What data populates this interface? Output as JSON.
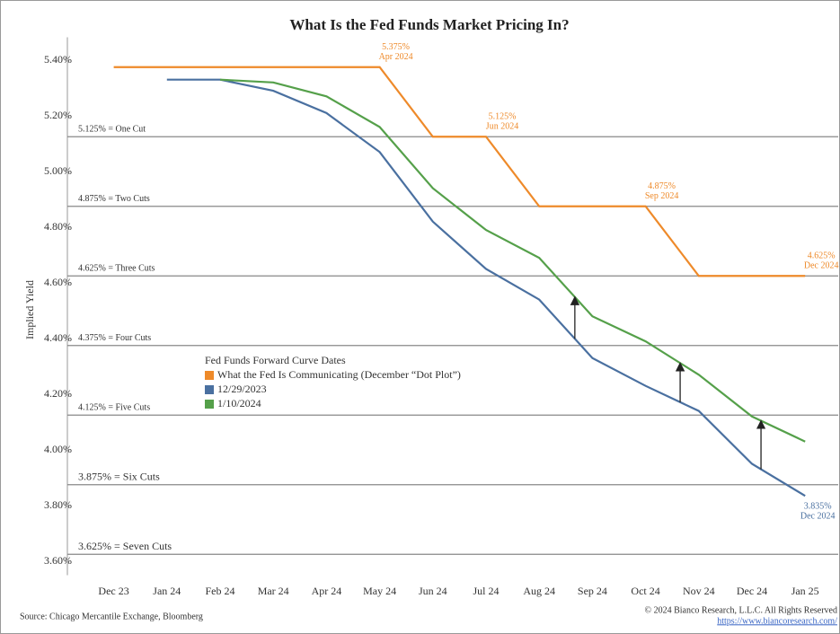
{
  "chart_data": {
    "type": "line",
    "title": "What Is the Fed Funds Market Pricing In?",
    "y_label": "Implied Yield",
    "categories": [
      "Dec 23",
      "Jan 24",
      "Feb 24",
      "Mar 24",
      "Apr 24",
      "May 24",
      "Jun 24",
      "Jul 24",
      "Aug 24",
      "Sep 24",
      "Oct 24",
      "Nov 24",
      "Dec 24",
      "Jan 25"
    ],
    "legend_title": "Fed Funds Forward Curve Dates",
    "series": [
      {
        "name": "What the Fed Is Communicating (December “Dot Plot”)",
        "color": "#ee8a2a",
        "values": [
          5.375,
          5.375,
          5.375,
          5.375,
          5.375,
          5.375,
          5.125,
          5.125,
          4.875,
          4.875,
          4.875,
          4.625,
          4.625,
          4.625
        ],
        "value_labels": [
          null,
          null,
          null,
          null,
          null,
          "5.375%",
          null,
          "5.125%",
          null,
          null,
          "4.875%",
          null,
          null,
          "4.625%"
        ],
        "label_dates": [
          null,
          null,
          null,
          null,
          null,
          "Apr 2024",
          null,
          "Jun 2024",
          null,
          null,
          "Sep 2024",
          null,
          null,
          "Dec 2024"
        ]
      },
      {
        "name": "12/29/2023",
        "color": "#4a70a0",
        "values": [
          null,
          5.33,
          5.33,
          5.29,
          5.21,
          5.07,
          4.82,
          4.65,
          4.54,
          4.33,
          4.23,
          4.14,
          3.95,
          3.835
        ],
        "value_labels": [
          null,
          null,
          null,
          null,
          null,
          null,
          null,
          null,
          null,
          null,
          null,
          null,
          null,
          "3.835%"
        ],
        "label_dates": [
          null,
          null,
          null,
          null,
          null,
          null,
          null,
          null,
          null,
          null,
          null,
          null,
          null,
          "Dec 2024"
        ]
      },
      {
        "name": "1/10/2024",
        "color": "#55a04a",
        "values": [
          null,
          null,
          5.33,
          5.32,
          5.27,
          5.16,
          4.94,
          4.79,
          4.69,
          4.48,
          4.39,
          4.27,
          4.12,
          4.03
        ]
      }
    ],
    "reference_lines": [
      {
        "value": 5.125,
        "label": "5.125% = One Cut"
      },
      {
        "value": 4.875,
        "label": "4.875% = Two Cuts"
      },
      {
        "value": 4.625,
        "label": "4.625% = Three Cuts"
      },
      {
        "value": 4.375,
        "label": "4.375% = Four Cuts"
      },
      {
        "value": 4.125,
        "label": "4.125% = Five Cuts"
      },
      {
        "value": 3.875,
        "label": "3.875% = Six Cuts"
      },
      {
        "value": 3.625,
        "label": "3.625% = Seven Cuts"
      }
    ],
    "ylim": [
      3.55,
      5.45
    ],
    "yticks": [
      {
        "value": 3.6,
        "label": "3.60%"
      },
      {
        "value": 3.8,
        "label": "3.80%"
      },
      {
        "value": 4.0,
        "label": "4.00%"
      },
      {
        "value": 4.2,
        "label": "4.20%"
      },
      {
        "value": 4.4,
        "label": "4.40%"
      },
      {
        "value": 4.6,
        "label": "4.60%"
      },
      {
        "value": 4.8,
        "label": "4.80%"
      },
      {
        "value": 5.0,
        "label": "5.00%"
      },
      {
        "value": 5.2,
        "label": "5.20%"
      },
      {
        "value": 5.4,
        "label": "5.40%"
      }
    ],
    "source": "Source: Chicago Mercantile Exchange, Bloomberg",
    "copyright": "© 2024 Bianco Research, L.L.C. All Rights Reserved",
    "url": "https://www.biancoresearch.com/"
  }
}
